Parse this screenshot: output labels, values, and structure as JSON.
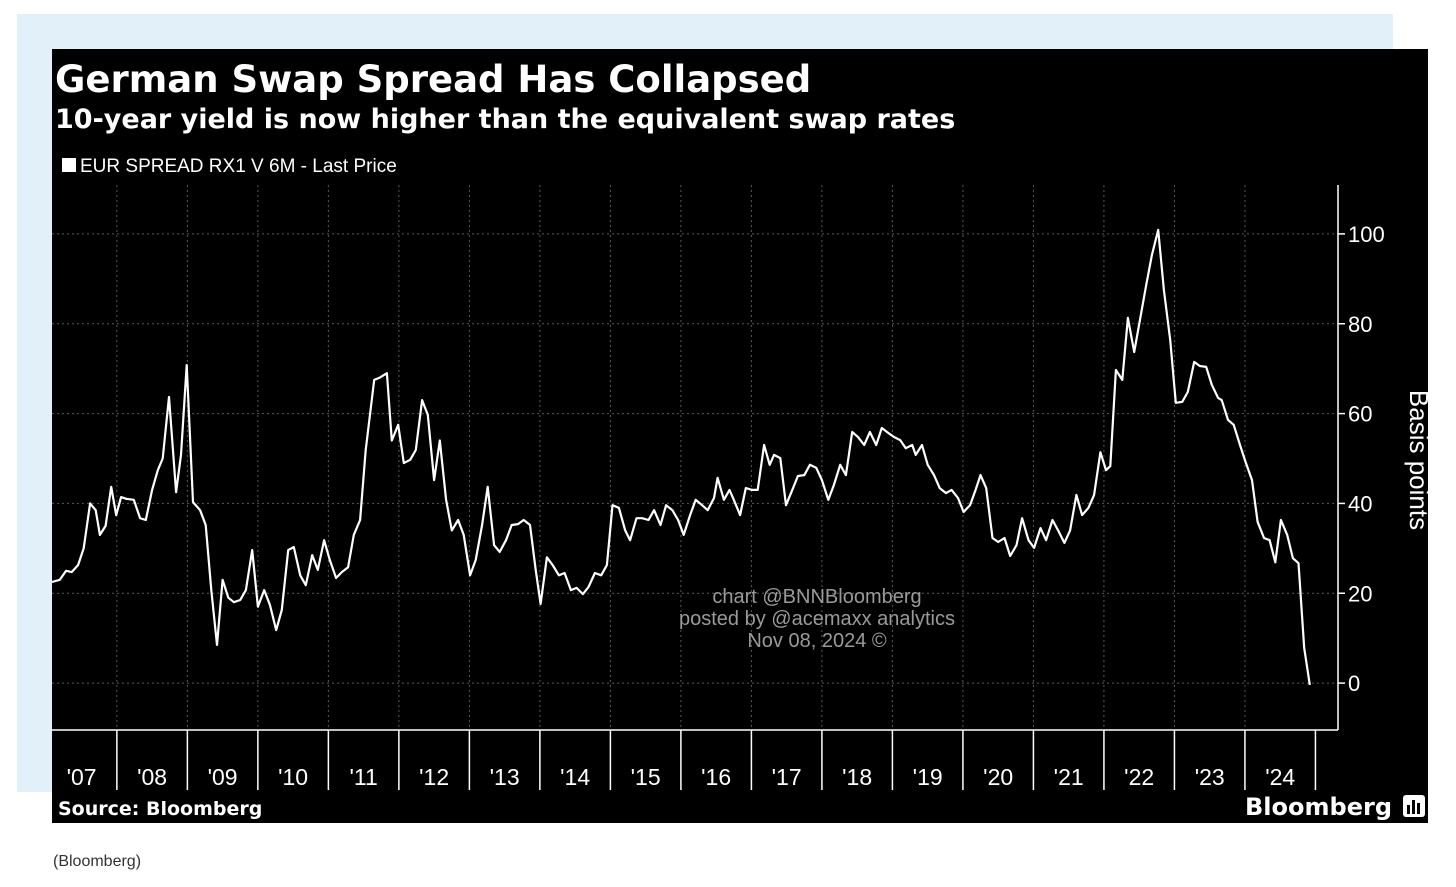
{
  "caption": "(Bloomberg)",
  "chart_data": {
    "type": "line",
    "title": "German Swap Spread Has Collapsed",
    "subtitle": "10-year yield is now higher than the equivalent swap rates",
    "y_axis_label": "Basis points",
    "source": "Source: Bloomberg",
    "logo": "Bloomberg",
    "annotations": [
      "chart @BNNBloomberg",
      "posted by @acemaxx analytics",
      "Nov 08, 2024 ©"
    ],
    "legend": "top-left",
    "grid": true,
    "xlim": [
      2007.08,
      2025.32
    ],
    "ylim": [
      -10,
      110
    ],
    "yticks": [
      0,
      20,
      40,
      60,
      80,
      100
    ],
    "xticks": [
      {
        "value": 2007,
        "label": "'07"
      },
      {
        "value": 2008,
        "label": "'08"
      },
      {
        "value": 2009,
        "label": "'09"
      },
      {
        "value": 2010,
        "label": "'10"
      },
      {
        "value": 2011,
        "label": "'11"
      },
      {
        "value": 2012,
        "label": "'12"
      },
      {
        "value": 2013,
        "label": "'13"
      },
      {
        "value": 2014,
        "label": "'14"
      },
      {
        "value": 2015,
        "label": "'15"
      },
      {
        "value": 2016,
        "label": "'16"
      },
      {
        "value": 2017,
        "label": "'17"
      },
      {
        "value": 2018,
        "label": "'18"
      },
      {
        "value": 2019,
        "label": "'19"
      },
      {
        "value": 2020,
        "label": "'20"
      },
      {
        "value": 2021,
        "label": "'21"
      },
      {
        "value": 2022,
        "label": "'22"
      },
      {
        "value": 2023,
        "label": "'23"
      },
      {
        "value": 2024,
        "label": "'24"
      }
    ],
    "x": [
      2007.08,
      2007.19,
      2007.28,
      2007.36,
      2007.45,
      2007.53,
      2007.62,
      2007.7,
      2007.76,
      2007.84,
      2007.92,
      2007.99,
      2008.06,
      2008.14,
      2008.24,
      2008.33,
      2008.41,
      2008.5,
      2008.58,
      2008.65,
      2008.74,
      2008.84,
      2008.91,
      2008.99,
      2009.08,
      2009.18,
      2009.26,
      2009.34,
      2009.42,
      2009.5,
      2009.58,
      2009.66,
      2009.75,
      2009.83,
      2009.92,
      2010.0,
      2010.09,
      2010.17,
      2010.26,
      2010.34,
      2010.43,
      2010.51,
      2010.6,
      2010.68,
      2010.77,
      2010.85,
      2010.94,
      2011.02,
      2011.11,
      2011.19,
      2011.28,
      2011.36,
      2011.45,
      2011.53,
      2011.65,
      2011.73,
      2011.83,
      2011.9,
      2011.99,
      2012.07,
      2012.16,
      2012.24,
      2012.33,
      2012.41,
      2012.5,
      2012.58,
      2012.67,
      2012.75,
      2012.84,
      2012.92,
      2013.01,
      2013.09,
      2013.18,
      2013.26,
      2013.35,
      2013.43,
      2013.52,
      2013.6,
      2013.69,
      2013.77,
      2013.86,
      2013.94,
      2014.01,
      2014.1,
      2014.18,
      2014.27,
      2014.35,
      2014.44,
      2014.52,
      2014.61,
      2014.69,
      2014.78,
      2014.87,
      2014.95,
      2015.03,
      2015.12,
      2015.21,
      2015.28,
      2015.37,
      2015.45,
      2015.54,
      2015.62,
      2015.71,
      2015.79,
      2015.88,
      2015.96,
      2016.04,
      2016.13,
      2016.21,
      2016.3,
      2016.38,
      2016.47,
      2016.52,
      2016.61,
      2016.69,
      2016.75,
      2016.84,
      2016.92,
      2017.01,
      2017.09,
      2017.18,
      2017.26,
      2017.32,
      2017.41,
      2017.49,
      2017.58,
      2017.66,
      2017.75,
      2017.83,
      2017.92,
      2018.0,
      2018.09,
      2018.17,
      2018.26,
      2018.34,
      2018.43,
      2018.51,
      2018.6,
      2018.68,
      2018.77,
      2018.85,
      2018.94,
      2019.02,
      2019.11,
      2019.19,
      2019.28,
      2019.33,
      2019.42,
      2019.5,
      2019.59,
      2019.67,
      2019.76,
      2019.84,
      2019.93,
      2020.01,
      2020.1,
      2020.18,
      2020.25,
      2020.33,
      2020.42,
      2020.5,
      2020.59,
      2020.67,
      2020.76,
      2020.84,
      2020.93,
      2021.01,
      2021.1,
      2021.18,
      2021.27,
      2021.35,
      2021.44,
      2021.52,
      2021.61,
      2021.69,
      2021.78,
      2021.86,
      2021.95,
      2022.03,
      2022.09,
      2022.17,
      2022.26,
      2022.34,
      2022.43,
      2022.51,
      2022.6,
      2022.68,
      2022.77,
      2022.85,
      2022.94,
      2023.02,
      2023.11,
      2023.19,
      2023.28,
      2023.36,
      2023.45,
      2023.53,
      2023.62,
      2023.67,
      2023.76,
      2023.84,
      2023.93,
      2024.01,
      2024.1,
      2024.18,
      2024.27,
      2024.35,
      2024.43,
      2024.51,
      2024.6,
      2024.68,
      2024.76,
      2024.84,
      2024.92
    ],
    "series": [
      {
        "name": "EUR SPREAD RX1 V 6M - Last Price",
        "color": "#ffffff",
        "values": [
          22.5,
          23,
          25,
          24.7,
          26.3,
          30,
          40,
          38.5,
          33,
          35,
          43.7,
          37.4,
          41.4,
          41,
          40.8,
          36.7,
          36.3,
          43,
          47.4,
          50,
          63.7,
          42.5,
          50.8,
          70.8,
          40.3,
          38.5,
          35.2,
          20.7,
          8.5,
          23,
          19,
          18,
          18.5,
          20.7,
          29.6,
          17,
          20.7,
          17.4,
          11.8,
          16.3,
          29.6,
          30.3,
          24,
          21.8,
          28.5,
          25.2,
          31.8,
          27.4,
          23.4,
          24.7,
          25.8,
          33,
          36.3,
          51.9,
          67.5,
          68,
          69,
          54,
          57.5,
          49,
          49.7,
          51.9,
          63,
          59.7,
          45.2,
          54,
          40.8,
          34,
          36.3,
          33,
          24,
          27.4,
          35.2,
          43.7,
          30.7,
          29.2,
          31.8,
          35.2,
          35.4,
          36.3,
          35.2,
          25.2,
          17.6,
          28,
          26.3,
          24,
          24.5,
          20.7,
          21.2,
          19.8,
          21.4,
          24.5,
          24,
          26.3,
          39.6,
          39,
          34,
          31.8,
          36.7,
          36.7,
          36.3,
          38.5,
          35.2,
          39.6,
          38.5,
          36.3,
          33,
          37.4,
          40.8,
          39.6,
          38.5,
          41.2,
          45.7,
          40.8,
          43,
          40.8,
          37.4,
          43.4,
          43,
          43,
          53,
          48.6,
          50.8,
          50.1,
          39.6,
          43,
          46.1,
          46.3,
          48.6,
          47.9,
          45.2,
          40.8,
          44.1,
          48.6,
          46.3,
          55.9,
          54.8,
          53,
          55.9,
          53,
          56.8,
          55.7,
          54.8,
          54.1,
          52.3,
          53,
          50.8,
          53,
          48.6,
          46.3,
          43.4,
          42.3,
          43,
          41.2,
          38.1,
          39.6,
          43,
          46.3,
          43.4,
          32.3,
          31.4,
          32.3,
          28.3,
          30.7,
          36.7,
          31.8,
          30.1,
          34.5,
          31.8,
          36.3,
          34,
          31.2,
          34,
          41.9,
          37.4,
          39,
          41.9,
          51.4,
          47.4,
          48.3,
          69.7,
          67.5,
          81.3,
          73.7,
          80.8,
          88.6,
          95.3,
          100.9,
          87.5,
          76.4,
          62.4,
          62.6,
          64.8,
          71.5,
          70.6,
          70.4,
          66.4,
          63.5,
          63,
          58.6,
          57.5,
          53,
          49.2,
          45.2,
          35.9,
          32.3,
          31.8,
          26.9,
          36.3,
          33,
          27.8,
          26.7,
          7.8,
          -0.4
        ]
      }
    ]
  }
}
